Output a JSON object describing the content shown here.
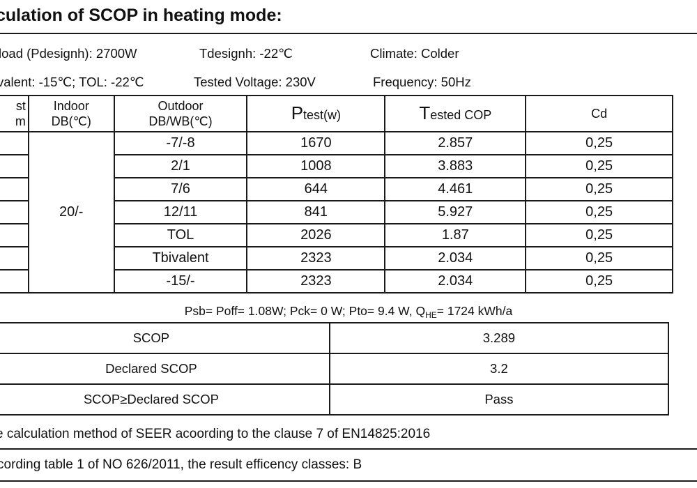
{
  "title": "culation of SCOP in heating mode:",
  "info": {
    "line1": {
      "load": "load (Pdesignh): 2700W",
      "tdesign": "Tdesignh: -22℃",
      "climate": "Climate: Colder"
    },
    "line2": {
      "bivalent": "valent: -15℃;  TOL: -22℃",
      "voltage": "Tested Voltage: 230V",
      "frequency": "Frequency: 50Hz"
    }
  },
  "table": {
    "headers": {
      "test_line1": "st",
      "test_line2": "m",
      "indoor_line1": "Indoor",
      "indoor_line2": "DB(℃)",
      "outdoor_line1": "Outdoor",
      "outdoor_line2": "DB/WB(℃)",
      "ptest_main": "P",
      "ptest_sub": "test(w)",
      "cop_main": "T",
      "cop_sub": "ested COP",
      "cd": "Cd"
    },
    "indoor_value": "20/-",
    "rows": [
      {
        "test": "",
        "outdoor": "-7/-8",
        "ptest": "1670",
        "cop": "2.857",
        "cd": "0,25"
      },
      {
        "test": "",
        "outdoor": "2/1",
        "ptest": "1008",
        "cop": "3.883",
        "cd": "0,25"
      },
      {
        "test": "",
        "outdoor": "7/6",
        "ptest": "644",
        "cop": "4.461",
        "cd": "0,25"
      },
      {
        "test": "",
        "outdoor": "12/11",
        "ptest": "841",
        "cop": "5.927",
        "cd": "0,25"
      },
      {
        "test": "",
        "outdoor": "TOL",
        "ptest": "2026",
        "cop": "1.87",
        "cd": "0,25"
      },
      {
        "test": "",
        "outdoor": "Tbivalent",
        "ptest": "2323",
        "cop": "2.034",
        "cd": "0,25"
      },
      {
        "test": "",
        "outdoor": "-15/-",
        "ptest": "2323",
        "cop": "2.034",
        "cd": "0,25"
      }
    ]
  },
  "power_line": {
    "text": "Psb= Poff= 1.08W;  Pck= 0 W; Pto= 9.4 W, Q",
    "sub": "HE",
    "tail": "=  1724 kWh/a"
  },
  "summary": [
    {
      "label": "SCOP",
      "value": "3.289"
    },
    {
      "label": "Declared SCOP",
      "value": "3.2"
    },
    {
      "label": "SCOP≥Declared SCOP",
      "value": "Pass"
    }
  ],
  "notes": {
    "method": "e calculation method of SEER acoording to the clause 7 of EN14825:2016",
    "classes": "cording table 1 of NO 626/2011, the result efficency classes: B"
  }
}
